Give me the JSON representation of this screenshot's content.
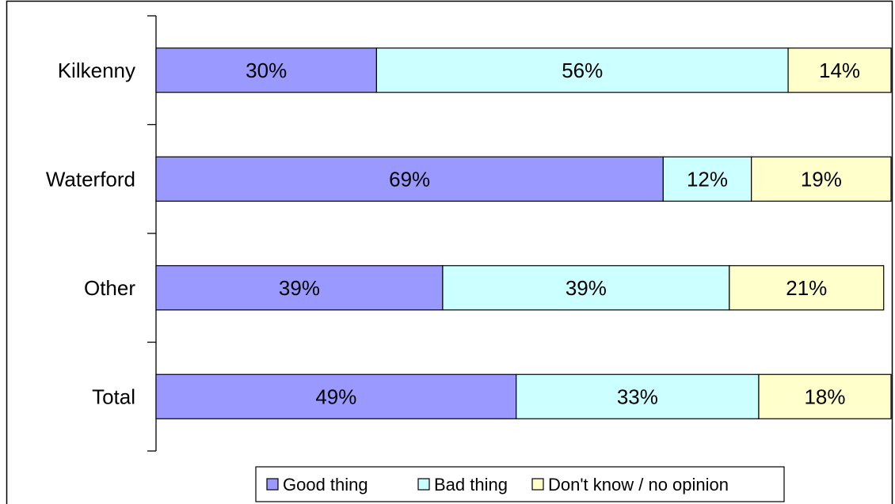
{
  "chart_data": {
    "type": "bar",
    "orientation": "horizontal",
    "stacked": true,
    "percent_stacked": true,
    "categories": [
      "Kilkenny",
      "Waterford",
      "Other",
      "Total"
    ],
    "series": [
      {
        "name": "Good thing",
        "values": [
          30,
          69,
          39,
          49
        ],
        "labels": [
          "30%",
          "69%",
          "39%",
          "49%"
        ],
        "color": "#9999ff"
      },
      {
        "name": "Bad thing",
        "values": [
          56,
          12,
          39,
          33
        ],
        "labels": [
          "56%",
          "12%",
          "39%",
          "33%"
        ],
        "color": "#ccffff"
      },
      {
        "name": "Don't know / no opinion",
        "values": [
          14,
          19,
          21,
          18
        ],
        "labels": [
          "14%",
          "19%",
          "21%",
          "18%"
        ],
        "color": "#ffffcc"
      }
    ],
    "xlim": [
      0,
      100
    ],
    "legend_position": "bottom",
    "grid": false
  }
}
